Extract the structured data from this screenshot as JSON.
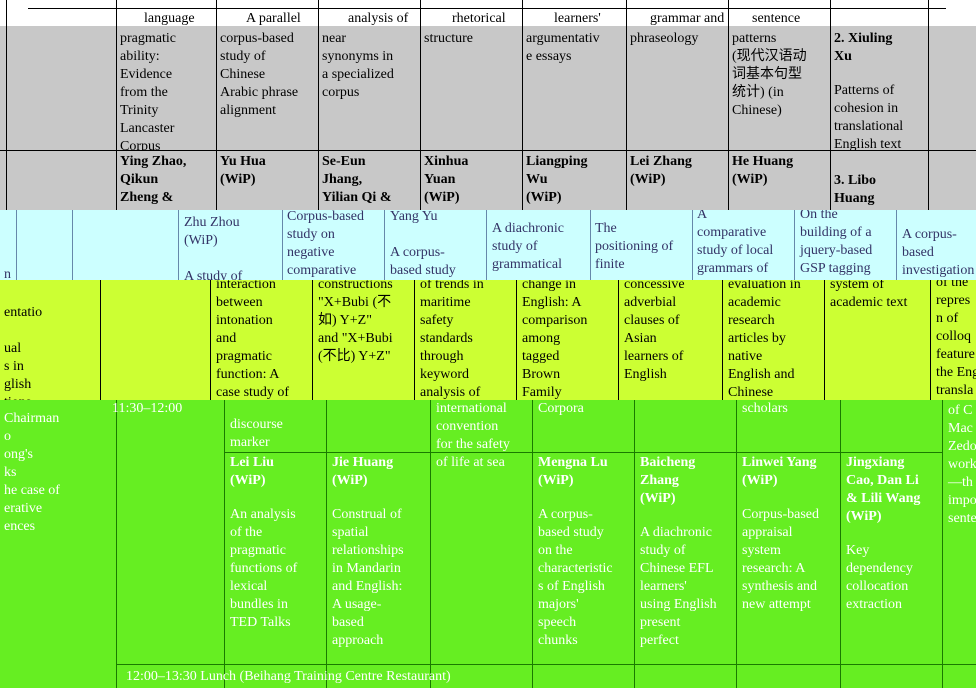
{
  "band_top": {
    "header_row": [
      "language",
      "A parallel",
      "analysis of",
      "rhetorical",
      "learners'",
      "grammar and",
      "sentence"
    ],
    "row_a": [
      "pragmatic\nability:\nEvidence\nfrom the\nTrinity\nLancaster\nCorpus",
      "corpus-based\nstudy of\nChinese\nArabic phrase\nalignment",
      "near\nsynonyms in\na specialized\ncorpus",
      "structure",
      "argumentativ\ne essays",
      "phraseology",
      "patterns\n(现代汉语动\n词基本句型\n统计) (in\nChinese)"
    ],
    "extra_title_a": "2. Xiuling\nXu",
    "extra_text_a": "Patterns of\ncohesion in\ntranslational\nEnglish text",
    "row_b": [
      "Ying Zhao,\nQikun\nZheng &",
      "Yu Hua\n(WiP)",
      "Se-Eun\nJhang,\nYilian Qi &",
      "Xinhua\nYuan\n(WiP)",
      "Liangping\nWu\n(WiP)",
      "Lei Zhang\n(WiP)",
      "He Huang\n(WiP)"
    ],
    "extra_title_b": "3. Libo\nHuang"
  },
  "band_cyan": {
    "cells": [
      {
        "t": "Zhu Zhou\n(WiP)\n\nA study of",
        "bold_lines": 0
      },
      {
        "t": "Corpus-based\nstudy on\nnegative\ncomparative"
      },
      {
        "t": "Yang Yu\n\nA corpus-\nbased study"
      },
      {
        "t": "A diachronic\nstudy of\ngrammatical"
      },
      {
        "t": "The\npositioning of\nfinite"
      },
      {
        "t": "A\ncomparative\nstudy of local\ngrammars of"
      },
      {
        "t": "On the\nbuilding of a\njquery-based\nGSP tagging"
      },
      {
        "t": "A corpus-\nbased\ninvestigation"
      }
    ],
    "left_stub": "n"
  },
  "band_yellow": {
    "left_col": "entatio\n\nual\ns in\nglish\ntions",
    "cells": [
      "interaction\nbetween\nintonation\nand\npragmatic\nfunction: A\ncase study of\n\"So\" as a",
      "constructions\n\"X+Bubi (不\n如) Y+Z\"\nand \"X+Bubi\n(不比) Y+Z\"",
      "of trends in\nmaritime\nsafety\nstandards\nthrough\nkeyword\nanalysis of",
      "change in\nEnglish: A\ncomparison\namong\ntagged\nBrown\nFamily",
      "concessive\nadverbial\nclauses of\nAsian\nlearners of\nEnglish",
      "evaluation in\nacademic\nresearch\narticles by\nnative\nEnglish and\nChinese",
      "system of\nacademic text",
      "of the\nrepres\nn of\ncolloq\nfeature\nthe Eng\ntransla"
    ]
  },
  "band_green": {
    "left_col": "Chairman\no\nong's\nks\nhe case of\nerative\nences",
    "time_label": "11:30–12:00",
    "top_cells": [
      "discourse\nmarker",
      "",
      "international\nconvention\nfor the safety\nof life at sea",
      "Corpora",
      "",
      "scholars",
      "",
      "of C\nMac\nZedo\nwork\n—th\nimpo\nsente"
    ],
    "sessions": [
      {
        "author": "Lei Liu\n(WiP)",
        "title": "An analysis\nof the\npragmatic\nfunctions of\nlexical\nbundles in\nTED Talks"
      },
      {
        "author": "Jie Huang\n(WiP)",
        "title": "Construal of\nspatial\nrelationships\nin Mandarin\nand English:\nA usage-\nbased\napproach"
      },
      {
        "author": "Mengna Lu\n(WiP)",
        "title": "A corpus-\nbased study\non the\ncharacteristic\ns of English\nmajors'\nspeech\nchunks"
      },
      {
        "author": "Baicheng\nZhang\n(WiP)",
        "title": "A diachronic\nstudy of\nChinese EFL\nlearners'\nusing English\npresent\nperfect"
      },
      {
        "author": "Linwei Yang\n(WiP)",
        "title": "Corpus-based\nappraisal\nsystem\nresearch: A\nsynthesis and\nnew attempt"
      },
      {
        "author": "Jingxiang\nCao, Dan Li\n& Lili Wang\n(WiP)",
        "title": "Key\ndependency\ncollocation\nextraction"
      }
    ],
    "lunch": "12:00–13:30   Lunch (Beihang Training Centre Restaurant)"
  },
  "colors": {
    "gray": "#c8c8c8",
    "cyan": "#ccffff",
    "yellow": "#ccff33",
    "green": "#66ee22",
    "green_text": "#ffffff",
    "cyan_text": "#333366"
  }
}
